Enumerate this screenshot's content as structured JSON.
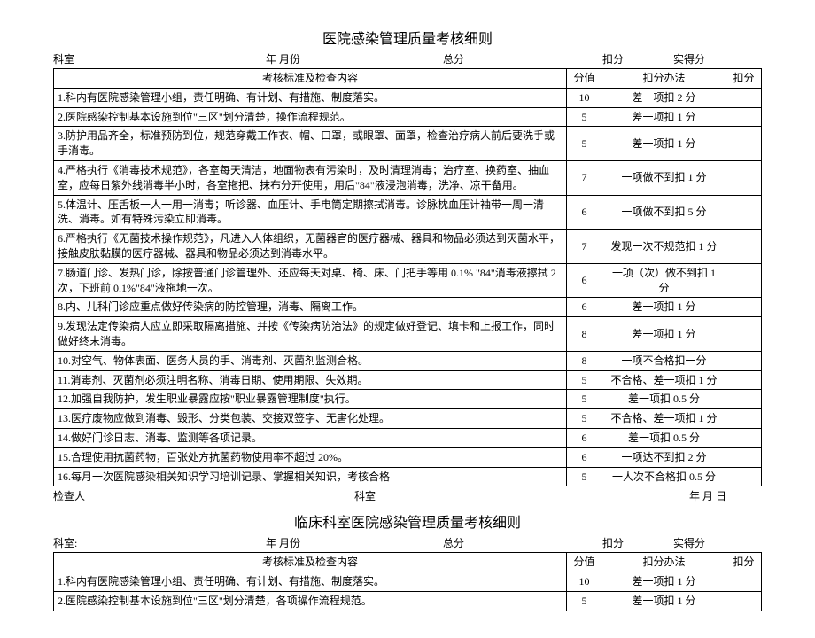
{
  "table1": {
    "title": "医院感染管理质量考核细则",
    "meta": {
      "dept_label": "科室",
      "date_label": "年    月份",
      "total_label": "总分",
      "deduct_label": "扣分",
      "actual_label": "实得分"
    },
    "headers": {
      "content": "考核标准及检查内容",
      "score": "分值",
      "rule": "扣分办法",
      "deduct": "扣分"
    },
    "rows": [
      {
        "content": "1.科内有医院感染管理小组，责任明确、有计划、有措施、制度落实。",
        "score": "10",
        "rule": "差一项扣 2 分"
      },
      {
        "content": "2.医院感染控制基本设施到位\"三区\"划分清楚，操作流程规范。",
        "score": "5",
        "rule": "差一项扣 1 分"
      },
      {
        "content": "3.防护用品齐全，标准预防到位，规范穿戴工作衣、帽、口罩，或眼罩、面罩，检查治疗病人前后要洗手或手消毒。",
        "score": "5",
        "rule": "差一项扣 1 分"
      },
      {
        "content": "4.严格执行《消毒技术规范》，各室每天清洁，地面物表有污染时，及时清理消毒；治疗室、换药室、抽血室，应每日紫外线消毒半小时，各室拖把、抹布分开使用，用后\"84\"液浸泡消毒，洗净、凉干备用。",
        "score": "7",
        "rule": "一项做不到扣 1 分"
      },
      {
        "content": "5.体温计、压舌板一人一用一消毒；听诊器、血压计、手电筒定期擦拭消毒。诊脉枕血压计袖带一周一清洗、消毒。如有特殊污染立即消毒。",
        "score": "6",
        "rule": "一项做不到扣 5 分"
      },
      {
        "content": "6.严格执行《无菌技术操作规范》，凡进入人体组织，无菌器官的医疗器械、器具和物品必须达到灭菌水平，接触皮肤黏膜的医疗器械、器具和物品必须达到消毒水平。",
        "score": "7",
        "rule": "发现一次不规范扣 1 分"
      },
      {
        "content": "7.肠道门诊、发热门诊，除按普通门诊管理外、还应每天对桌、椅、床、门把手等用 0.1% \"84\"消毒液擦拭 2 次，下班前 0.1%\"84\"液拖地一次。",
        "score": "6",
        "rule": "一项（次）做不到扣 1 分"
      },
      {
        "content": "8.内、儿科门诊应重点做好传染病的防控管理，消毒、隔离工作。",
        "score": "6",
        "rule": "差一项扣 1 分"
      },
      {
        "content": "9.发现法定传染病人应立即采取隔离措施、并按《传染病防治法》的规定做好登记、填卡和上报工作，同时做好终末消毒。",
        "score": "8",
        "rule": "差一项扣 1 分"
      },
      {
        "content": "10.对空气、物体表面、医务人员的手、消毒剂、灭菌剂监测合格。",
        "score": "8",
        "rule": "一项不合格扣一分"
      },
      {
        "content": "11.消毒剂、灭菌剂必须注明名称、消毒日期、使用期限、失效期。",
        "score": "5",
        "rule": "不合格、差一项扣 1 分"
      },
      {
        "content": "12.加强自我防护，发生职业暴露应按\"职业暴露管理制度\"执行。",
        "score": "5",
        "rule": "差一项扣 0.5 分"
      },
      {
        "content": "13.医疗废物应做到消毒、毁形、分类包装、交接双签字、无害化处理。",
        "score": "5",
        "rule": "不合格、差一项扣 1 分"
      },
      {
        "content": "14.做好门诊日志、消毒、监测等各项记录。",
        "score": "6",
        "rule": "差一项扣 0.5 分"
      },
      {
        "content": "15.合理使用抗菌药物，百张处方抗菌药物使用率不超过 20%。",
        "score": "6",
        "rule": "一项达不到扣 2 分"
      },
      {
        "content": "16.每月一次医院感染相关知识学习培训记录、掌握相关知识，考核合格",
        "score": "5",
        "rule": "一人次不合格扣 0.5 分"
      }
    ],
    "footer": {
      "checker_label": "检查人",
      "dept_label": "科室",
      "date_label": "年        月        日"
    }
  },
  "table2": {
    "title": "临床科室医院感染管理质量考核细则",
    "meta": {
      "dept_label": "科室:",
      "date_label": "年    月份",
      "total_label": "总分",
      "deduct_label": "扣分",
      "actual_label": "实得分"
    },
    "headers": {
      "content": "考核标准及检查内容",
      "score": "分值",
      "rule": "扣分办法",
      "deduct": "扣分"
    },
    "rows": [
      {
        "content": "1.科内有医院感染管理小组、责任明确、有计划、有措施、制度落实。",
        "score": "10",
        "rule": "差一项扣 1 分"
      },
      {
        "content": "2.医院感染控制基本设施到位\"三区\"划分清楚，各项操作流程规范。",
        "score": "5",
        "rule": "差一项扣 1 分"
      }
    ]
  }
}
